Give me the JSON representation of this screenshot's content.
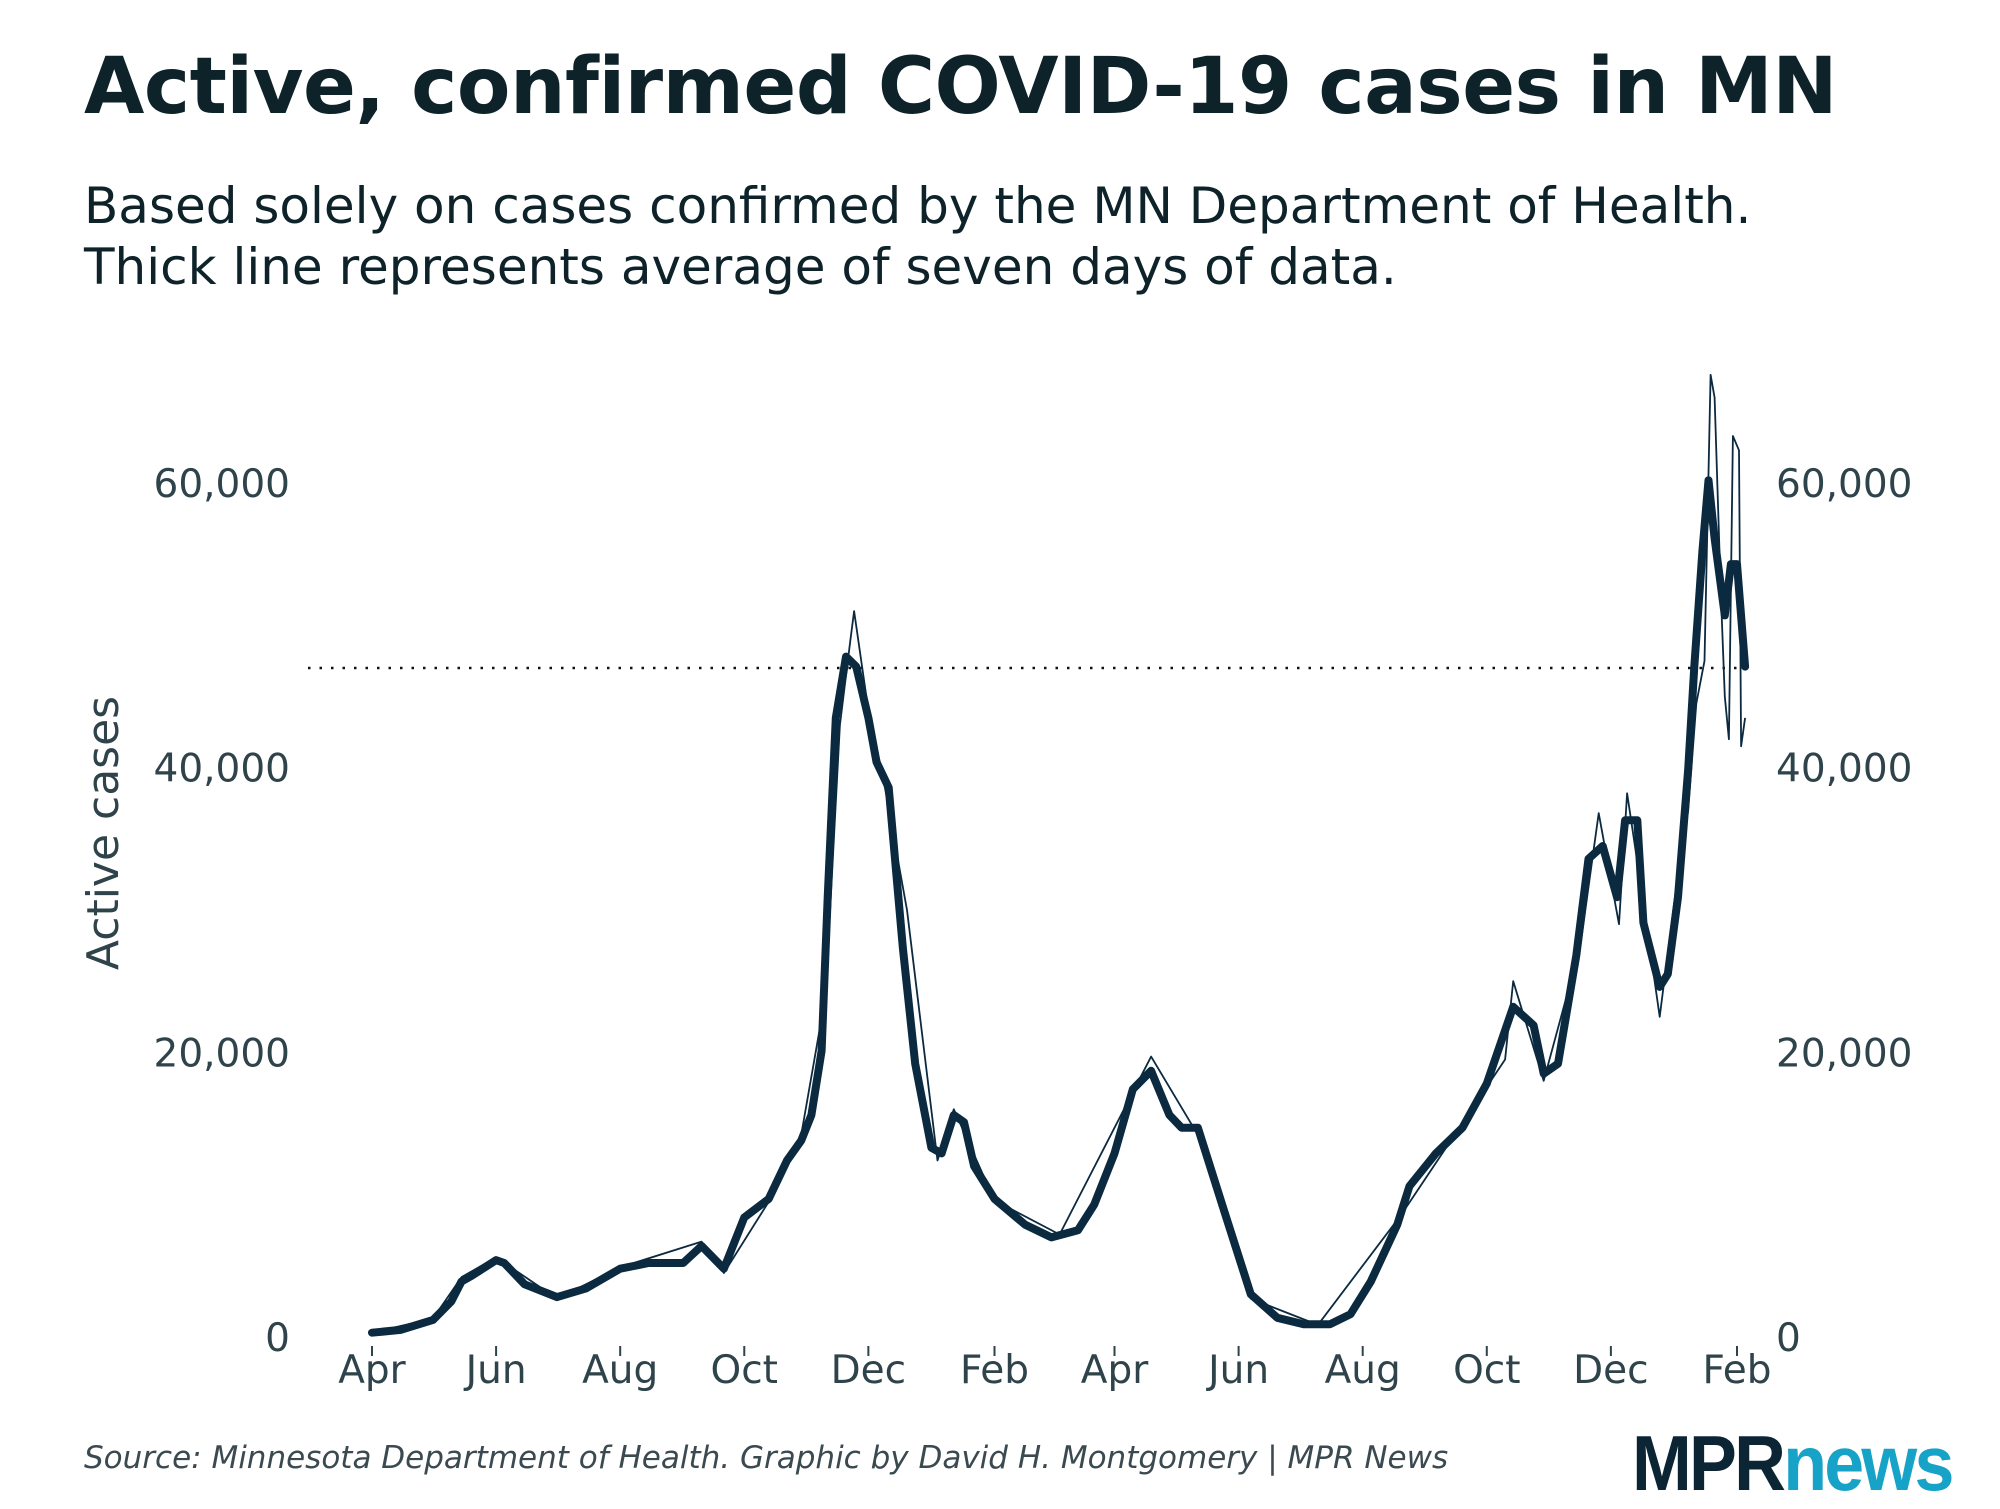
{
  "header": {
    "title": "Active, confirmed COVID-19 cases in MN",
    "subtitle_line1": "Based solely on cases confirmed by the MN Department of Health.",
    "subtitle_line2": "Thick line represents average of seven days of data."
  },
  "footer": {
    "source": "Source: Minnesota Department of Health. Graphic by David H. Montgomery | MPR News",
    "logo_mpr": "MPR",
    "logo_news": "news"
  },
  "colors": {
    "line": "#0b2a40",
    "text": "#0e2229",
    "axis_text": "#2f434b",
    "logo_dark": "#0b2535",
    "logo_teal": "#17a2c7"
  },
  "chart_data": {
    "type": "line",
    "title": "Active, confirmed COVID-19 cases in MN",
    "ylabel": "Active cases",
    "xlabel": "",
    "xlim": [
      "2020-04-01",
      "2022-02-10"
    ],
    "ylim": [
      0,
      60000
    ],
    "y_ticks": [
      0,
      20000,
      40000,
      60000
    ],
    "y_tick_labels": [
      "0",
      "20,000",
      "40,000",
      "60,000"
    ],
    "y_axis_both_sides": true,
    "x_ticks": [
      "2020-04-01",
      "2020-06-01",
      "2020-08-01",
      "2020-10-01",
      "2020-12-01",
      "2021-02-01",
      "2021-04-01",
      "2021-06-01",
      "2021-08-01",
      "2021-10-01",
      "2021-12-01",
      "2022-02-01"
    ],
    "x_tick_labels": [
      "Apr",
      "Jun",
      "Aug",
      "Oct",
      "Dec",
      "Feb",
      "Apr",
      "Jun",
      "Aug",
      "Oct",
      "Dec",
      "Feb"
    ],
    "grid": false,
    "reference_line": {
      "y": 47000,
      "style": "dotted"
    },
    "series": [
      {
        "role": "seven-day average (thick)",
        "x": [
          "2020-04-01",
          "2020-04-15",
          "2020-05-01",
          "2020-05-10",
          "2020-05-15",
          "2020-05-20",
          "2020-06-01",
          "2020-06-05",
          "2020-06-15",
          "2020-07-01",
          "2020-07-15",
          "2020-08-01",
          "2020-08-15",
          "2020-09-01",
          "2020-09-10",
          "2020-09-21",
          "2020-10-01",
          "2020-10-13",
          "2020-10-22",
          "2020-10-29",
          "2020-11-03",
          "2020-11-08",
          "2020-11-11",
          "2020-11-15",
          "2020-11-20",
          "2020-11-25",
          "2020-12-01",
          "2020-12-05",
          "2020-12-11",
          "2020-12-18",
          "2020-12-24",
          "2021-01-01",
          "2021-01-06",
          "2021-01-12",
          "2021-01-17",
          "2021-01-22",
          "2021-02-01",
          "2021-02-16",
          "2021-03-01",
          "2021-03-14",
          "2021-03-22",
          "2021-04-01",
          "2021-04-10",
          "2021-04-19",
          "2021-04-28",
          "2021-05-04",
          "2021-05-12",
          "2021-05-25",
          "2021-06-07",
          "2021-06-20",
          "2021-07-03",
          "2021-07-16",
          "2021-07-26",
          "2021-08-05",
          "2021-08-18",
          "2021-08-24",
          "2021-09-06",
          "2021-09-19",
          "2021-10-01",
          "2021-10-14",
          "2021-10-24",
          "2021-10-29",
          "2021-11-05",
          "2021-11-14",
          "2021-11-20",
          "2021-11-27",
          "2021-12-04",
          "2021-12-08",
          "2021-12-14",
          "2021-12-17",
          "2021-12-25",
          "2021-12-29",
          "2022-01-03",
          "2022-01-08",
          "2022-01-11",
          "2022-01-15",
          "2022-01-18",
          "2022-01-21",
          "2022-01-26",
          "2022-01-29",
          "2022-02-01",
          "2022-02-05"
        ],
        "values": [
          300,
          500,
          1200,
          2500,
          3900,
          4300,
          5400,
          5200,
          3700,
          2800,
          3400,
          4800,
          5200,
          5200,
          6400,
          4800,
          8400,
          9700,
          12400,
          13800,
          15600,
          20100,
          30900,
          43500,
          47800,
          47100,
          43500,
          40400,
          38600,
          27300,
          19200,
          13300,
          12900,
          15600,
          15100,
          12000,
          9700,
          7900,
          7000,
          7500,
          9300,
          12900,
          17400,
          18700,
          15600,
          14700,
          14700,
          8800,
          3000,
          1350,
          900,
          900,
          1600,
          3900,
          7900,
          10600,
          12900,
          14700,
          17800,
          23200,
          21900,
          18500,
          19200,
          26800,
          33600,
          34500,
          30900,
          36300,
          36300,
          29100,
          24600,
          25500,
          30900,
          39900,
          47100,
          55200,
          60200,
          56100,
          50700,
          54300,
          54300,
          47100
        ]
      },
      {
        "role": "daily (thin)",
        "x": [
          "2020-04-01",
          "2020-05-01",
          "2020-05-15",
          "2020-06-01",
          "2020-07-01",
          "2020-08-01",
          "2020-09-10",
          "2020-09-21",
          "2020-10-13",
          "2020-10-29",
          "2020-11-10",
          "2020-11-17",
          "2020-11-22",
          "2020-11-24",
          "2020-12-01",
          "2020-12-08",
          "2020-12-20",
          "2021-01-04",
          "2021-01-12",
          "2021-02-01",
          "2021-03-05",
          "2021-04-19",
          "2021-05-12",
          "2021-06-07",
          "2021-07-10",
          "2021-08-20",
          "2021-10-10",
          "2021-10-14",
          "2021-10-29",
          "2021-11-16",
          "2021-11-25",
          "2021-12-05",
          "2021-12-09",
          "2021-12-18",
          "2021-12-25",
          "2022-01-02",
          "2022-01-08",
          "2022-01-12",
          "2022-01-16",
          "2022-01-19",
          "2022-01-21",
          "2022-01-24",
          "2022-01-26",
          "2022-01-28",
          "2022-01-30",
          "2022-02-02",
          "2022-02-03",
          "2022-02-05"
        ],
        "values": [
          300,
          1300,
          4200,
          5600,
          2700,
          4900,
          6700,
          4500,
          9500,
          14200,
          24000,
          43000,
          48800,
          51000,
          44000,
          39500,
          30000,
          12400,
          16000,
          9600,
          7200,
          19700,
          14200,
          2700,
          850,
          8600,
          19500,
          25000,
          18000,
          27500,
          36800,
          29000,
          38200,
          29500,
          22500,
          31500,
          37000,
          44500,
          47500,
          67600,
          66000,
          52500,
          45000,
          42000,
          63300,
          62300,
          41500,
          43500
        ]
      }
    ]
  }
}
